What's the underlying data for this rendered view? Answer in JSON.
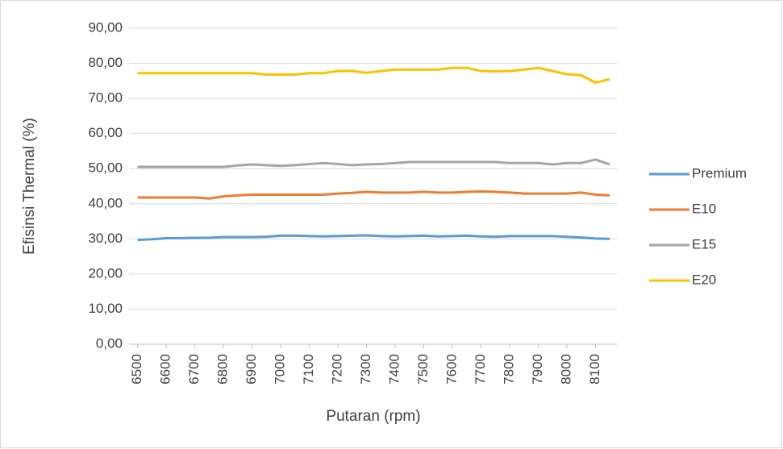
{
  "chart_data": {
    "type": "line",
    "x_label": "Putaran (rpm)",
    "y_label": "Efisinsi Thermal (%)",
    "x": [
      6500,
      6550,
      6600,
      6650,
      6700,
      6750,
      6800,
      6850,
      6900,
      6950,
      7000,
      7050,
      7100,
      7150,
      7200,
      7250,
      7300,
      7350,
      7400,
      7450,
      7500,
      7550,
      7600,
      7650,
      7700,
      7750,
      7800,
      7850,
      7900,
      7950,
      8000,
      8050,
      8100,
      8150
    ],
    "series": [
      {
        "name": "Premium",
        "color": "#5b9bd5",
        "values": [
          29.7,
          29.9,
          30.2,
          30.2,
          30.3,
          30.3,
          30.5,
          30.5,
          30.5,
          30.6,
          30.9,
          30.9,
          30.8,
          30.7,
          30.8,
          30.9,
          31.0,
          30.8,
          30.7,
          30.8,
          30.9,
          30.7,
          30.8,
          30.9,
          30.7,
          30.6,
          30.8,
          30.8,
          30.8,
          30.8,
          30.6,
          30.4,
          30.1,
          30.0
        ]
      },
      {
        "name": "E10",
        "color": "#ed7d31",
        "values": [
          41.8,
          41.8,
          41.8,
          41.8,
          41.8,
          41.5,
          42.1,
          42.4,
          42.6,
          42.6,
          42.6,
          42.6,
          42.6,
          42.6,
          42.9,
          43.1,
          43.4,
          43.2,
          43.2,
          43.2,
          43.4,
          43.2,
          43.2,
          43.4,
          43.5,
          43.4,
          43.2,
          42.9,
          42.9,
          42.9,
          42.9,
          43.2,
          42.6,
          42.4
        ]
      },
      {
        "name": "E15",
        "color": "#a5a5a5",
        "values": [
          50.5,
          50.5,
          50.5,
          50.5,
          50.5,
          50.5,
          50.5,
          50.9,
          51.2,
          51.0,
          50.8,
          51.0,
          51.3,
          51.6,
          51.3,
          51.0,
          51.2,
          51.3,
          51.6,
          51.9,
          51.9,
          51.9,
          51.9,
          51.9,
          51.9,
          51.9,
          51.6,
          51.6,
          51.6,
          51.2,
          51.6,
          51.6,
          52.6,
          51.2
        ]
      },
      {
        "name": "E20",
        "color": "#ffc000",
        "values": [
          77.2,
          77.2,
          77.2,
          77.2,
          77.2,
          77.2,
          77.2,
          77.2,
          77.2,
          76.8,
          76.8,
          76.8,
          77.2,
          77.2,
          77.8,
          77.8,
          77.3,
          77.8,
          78.2,
          78.2,
          78.2,
          78.2,
          78.7,
          78.7,
          77.8,
          77.7,
          77.8,
          78.2,
          78.7,
          77.8,
          76.9,
          76.6,
          74.5,
          75.5
        ]
      }
    ],
    "xlim": [
      6470,
      8175
    ],
    "xticks": [
      6500,
      6600,
      6700,
      6800,
      6900,
      7000,
      7100,
      7200,
      7300,
      7400,
      7500,
      7600,
      7700,
      7800,
      7900,
      8000,
      8100
    ],
    "ylim": [
      0,
      90
    ],
    "yticks": [
      {
        "value": 0,
        "label": "0,00"
      },
      {
        "value": 10,
        "label": "10,00"
      },
      {
        "value": 20,
        "label": "20,00"
      },
      {
        "value": 30,
        "label": "30,00"
      },
      {
        "value": 40,
        "label": "40,00"
      },
      {
        "value": 50,
        "label": "50,00"
      },
      {
        "value": 60,
        "label": "60,00"
      },
      {
        "value": 70,
        "label": "70,00"
      },
      {
        "value": 80,
        "label": "80,00"
      },
      {
        "value": 90,
        "label": "90,00"
      }
    ],
    "grid": true,
    "legend": "right"
  }
}
